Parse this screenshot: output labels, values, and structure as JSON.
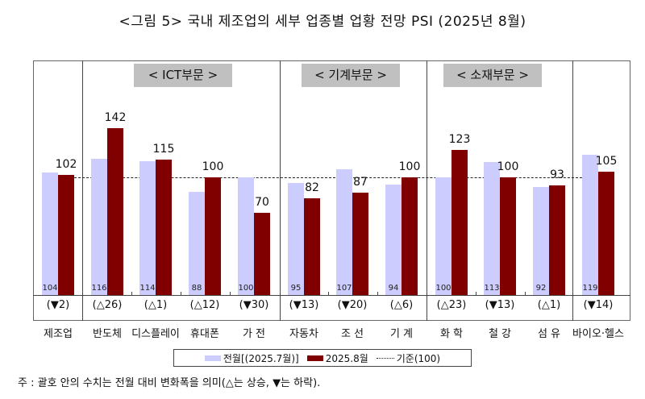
{
  "title": "<그림 5> 국내 제조업의 세부 업종별 업황 전망 PSI (2025년 8월)",
  "chart_data": {
    "type": "bar",
    "title": "<그림 5> 국내 제조업의 세부 업종별 업황 전망 PSI (2025년 8월)",
    "categories": [
      "제조업",
      "반도체",
      "디스플레이",
      "휴대폰",
      "가 전",
      "자동차",
      "조 선",
      "기 계",
      "화 학",
      "철 강",
      "섬 유",
      "바이오·헬스"
    ],
    "series": [
      {
        "name": "전월[(2025.7월)]",
        "color": "#ccccff",
        "values": [
          104,
          116,
          114,
          88,
          100,
          95,
          107,
          94,
          100,
          113,
          92,
          119
        ]
      },
      {
        "name": "2025.8월",
        "color": "#800000",
        "values": [
          102,
          142,
          115,
          100,
          70,
          82,
          87,
          100,
          123,
          100,
          93,
          105
        ]
      }
    ],
    "changes": [
      "(▼2)",
      "(△26)",
      "(△1)",
      "(△12)",
      "(▼30)",
      "(▼13)",
      "(▼20)",
      "(△6)",
      "(△23)",
      "(▼13)",
      "(△1)",
      "(▼14)"
    ],
    "reference_line": {
      "label": "기준(100)",
      "value": 100
    },
    "sections": [
      {
        "label": "< ICT부문 >",
        "categories": [
          "반도체",
          "디스플레이",
          "휴대폰",
          "가 전"
        ]
      },
      {
        "label": "< 기계부문 >",
        "categories": [
          "자동차",
          "조 선",
          "기 계"
        ]
      },
      {
        "label": "< 소재부문 >",
        "categories": [
          "화 학",
          "철 강",
          "섬 유"
        ]
      }
    ],
    "xlabel": "",
    "ylabel": "",
    "grid": false,
    "legend_position": "bottom"
  },
  "legend": {
    "prev": "전월[(2025.7월)]",
    "cur": "2025.8월",
    "ref": "기준(100)"
  },
  "note": "주 : 괄호 안의 수치는 전월 대비 변화폭을 의미(△는 상승, ▼는 하락)."
}
